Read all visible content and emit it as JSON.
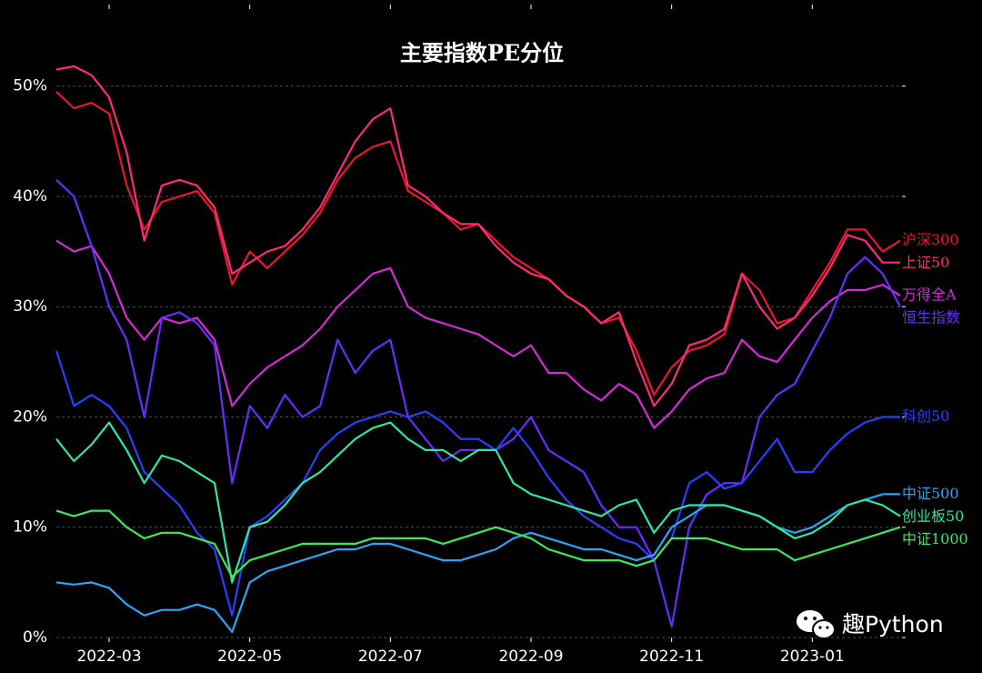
{
  "chart_data": {
    "type": "line",
    "title": "主要指数PE分位",
    "watermark": "趣Python",
    "categories": [
      null,
      null,
      null,
      "2022-03",
      null,
      null,
      null,
      null,
      null,
      null,
      null,
      "2022-05",
      null,
      null,
      null,
      null,
      null,
      null,
      null,
      "2022-07",
      null,
      null,
      null,
      null,
      null,
      null,
      null,
      "2022-09",
      null,
      null,
      null,
      null,
      null,
      null,
      null,
      "2022-11",
      null,
      null,
      null,
      null,
      null,
      null,
      null,
      "2023-01",
      null,
      null,
      null,
      null,
      null
    ],
    "series": [
      {
        "name": "沪深300",
        "color": "#f0142c",
        "values": [
          49.5,
          48,
          48.5,
          47.5,
          41,
          37,
          39.5,
          40,
          40.5,
          38.5,
          32,
          35,
          33.5,
          35,
          36.5,
          38.5,
          41.5,
          43.5,
          44.5,
          45,
          40.5,
          39.5,
          38.5,
          37,
          37.5,
          36,
          34.5,
          33.5,
          32.5,
          31,
          30,
          28.5,
          29,
          26,
          22,
          24.5,
          26,
          26.5,
          27.5,
          33,
          31.5,
          28.5,
          29,
          31.5,
          34,
          37,
          37,
          35,
          36
        ]
      },
      {
        "name": "上证50",
        "color": "#ff2a78",
        "values": [
          51.5,
          51.8,
          51,
          49,
          44,
          36,
          41,
          41.5,
          41,
          39,
          33,
          34,
          35,
          35.5,
          37,
          39,
          42,
          45,
          47,
          48,
          41,
          40,
          38.5,
          37.5,
          37.5,
          35.5,
          34,
          33,
          32.5,
          31,
          30,
          28.5,
          29.5,
          25,
          21,
          23,
          26.5,
          27,
          28,
          33,
          30,
          28,
          29,
          31,
          33.5,
          36.5,
          36,
          34,
          34
        ]
      },
      {
        "name": "万得全A",
        "color": "#d52ad8",
        "values": [
          36,
          35,
          35.5,
          33,
          29,
          27,
          29,
          28.5,
          29,
          27,
          21,
          23,
          24.5,
          25.5,
          26.5,
          28,
          30,
          31.5,
          33,
          33.5,
          30,
          29,
          28.5,
          28,
          27.5,
          26.5,
          25.5,
          26.5,
          24,
          24,
          22.5,
          21.5,
          23,
          22,
          19,
          20.5,
          22.5,
          23.5,
          24,
          27,
          25.5,
          25,
          27,
          29,
          30.5,
          31.5,
          31.5,
          32,
          31
        ]
      },
      {
        "name": "恒生指数",
        "color": "#6a2cff",
        "values": [
          41.5,
          40,
          35.5,
          30,
          27,
          20,
          29,
          29.5,
          28.5,
          26.5,
          14,
          21,
          19,
          22,
          20,
          21,
          27,
          24,
          26,
          27,
          20,
          18,
          16,
          17,
          17,
          17,
          18,
          20,
          17,
          16,
          15,
          12,
          10,
          10,
          7,
          1,
          10,
          13,
          14,
          14,
          20,
          22,
          23,
          26,
          29,
          33,
          34.5,
          33,
          30
        ]
      },
      {
        "name": "科创50",
        "color": "#2a40ff",
        "values": [
          26,
          21,
          22,
          21,
          19,
          15,
          13.5,
          12,
          9.5,
          8,
          2,
          10,
          11,
          12.5,
          14,
          17,
          18.5,
          19.5,
          20,
          20.5,
          20,
          20.5,
          19.5,
          18,
          18,
          17,
          19,
          17,
          14.5,
          12.5,
          11,
          10,
          9,
          8.5,
          7,
          9,
          14,
          15,
          13.5,
          14,
          16,
          18,
          15,
          15,
          17,
          18.5,
          19.5,
          20,
          20
        ]
      },
      {
        "name": "中证500",
        "color": "#2aa6f5",
        "values": [
          5,
          4.8,
          5,
          4.5,
          3,
          2,
          2.5,
          2.5,
          3,
          2.5,
          0.5,
          5,
          6,
          6.5,
          7,
          7.5,
          8,
          8,
          8.5,
          8.5,
          8,
          7.5,
          7,
          7,
          7.5,
          8,
          9,
          9.5,
          9,
          8.5,
          8,
          8,
          7.5,
          7,
          7.5,
          10,
          11,
          12,
          12,
          11.5,
          11,
          10,
          9.5,
          10,
          11,
          12,
          12.5,
          13,
          13
        ]
      },
      {
        "name": "创业板50",
        "color": "#2ee6a6",
        "values": [
          18,
          16,
          17.5,
          19.5,
          17,
          14,
          16.5,
          16,
          15,
          14,
          5,
          10,
          10.5,
          12,
          14,
          15,
          16.5,
          18,
          19,
          19.5,
          18,
          17,
          17,
          16,
          17,
          17,
          14,
          13,
          12.5,
          12,
          11.5,
          11,
          12,
          12.5,
          9.5,
          11.5,
          12,
          12,
          12,
          11.5,
          11,
          10,
          9,
          9.5,
          10.5,
          12,
          12.5,
          12,
          11
        ]
      },
      {
        "name": "中证1000",
        "color": "#3de85a",
        "values": [
          11.5,
          11,
          11.5,
          11.5,
          10,
          9,
          9.5,
          9.5,
          9,
          8.5,
          5.5,
          7,
          7.5,
          8,
          8.5,
          8.5,
          8.5,
          8.5,
          9,
          9,
          9,
          9,
          8.5,
          9,
          9.5,
          10,
          9.5,
          9,
          8,
          7.5,
          7,
          7,
          7,
          6.5,
          7,
          9,
          9,
          9,
          8.5,
          8,
          8,
          8,
          7,
          7.5,
          8,
          8.5,
          9,
          9.5,
          10
        ]
      }
    ],
    "ylim": [
      0,
      57.4
    ],
    "yticks": [
      {
        "value": 0,
        "label": "0%"
      },
      {
        "value": 10,
        "label": "10%"
      },
      {
        "value": 20,
        "label": "20%"
      },
      {
        "value": 30,
        "label": "30%"
      },
      {
        "value": 40,
        "label": "40%"
      },
      {
        "value": 50,
        "label": "50%"
      }
    ],
    "grid": true
  }
}
